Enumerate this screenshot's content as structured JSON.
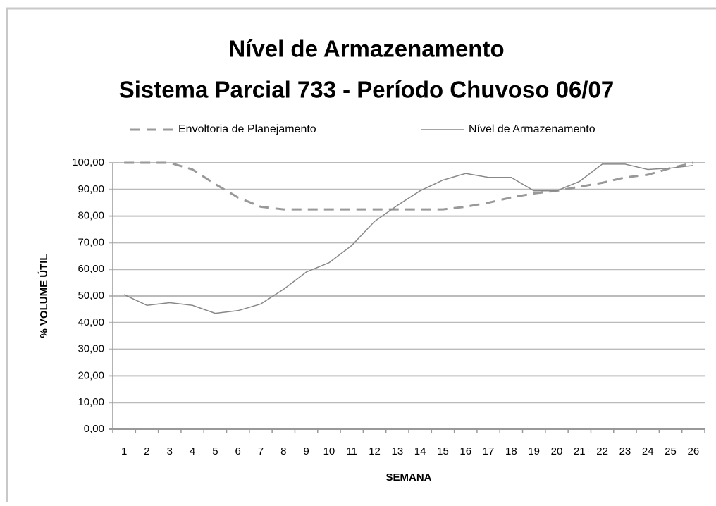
{
  "chart_data": {
    "type": "line",
    "title": "Nível de Armazenamento",
    "subtitle": "Sistema Parcial 733 - Período Chuvoso 06/07",
    "x_label": "SEMANA",
    "y_label": "% VOLUME ÚTIL",
    "categories": [
      "1",
      "2",
      "3",
      "4",
      "5",
      "6",
      "7",
      "8",
      "9",
      "10",
      "11",
      "12",
      "13",
      "14",
      "15",
      "16",
      "17",
      "18",
      "19",
      "20",
      "21",
      "22",
      "23",
      "24",
      "25",
      "26"
    ],
    "series": [
      {
        "name": "Envoltoria de Planejamento",
        "color": "#999999",
        "line_style": "dashed",
        "values": [
          100,
          100,
          100,
          97.5,
          92,
          87,
          83.5,
          82.5,
          82.5,
          82.5,
          82.5,
          82.5,
          82.5,
          82.5,
          82.5,
          83.5,
          85,
          87,
          88.5,
          89.5,
          91,
          92.5,
          94.5,
          95.5,
          98,
          100
        ]
      },
      {
        "name": "Nível de Armazenamento",
        "color": "#888888",
        "line_style": "solid",
        "values": [
          50.5,
          46.5,
          47.5,
          46.5,
          43.5,
          44.5,
          47,
          52.5,
          59,
          62.5,
          69,
          78,
          84,
          89.5,
          93.5,
          96,
          94.5,
          94.5,
          89.5,
          89.5,
          93,
          99.5,
          99.5,
          97.5,
          98,
          99
        ]
      }
    ],
    "ylim": [
      0,
      100
    ],
    "yticks": [
      {
        "value": 0,
        "label": "0,00"
      },
      {
        "value": 10,
        "label": "10,00"
      },
      {
        "value": 20,
        "label": "20,00"
      },
      {
        "value": 30,
        "label": "30,00"
      },
      {
        "value": 40,
        "label": "40,00"
      },
      {
        "value": 50,
        "label": "50,00"
      },
      {
        "value": 60,
        "label": "60,00"
      },
      {
        "value": 70,
        "label": "70,00"
      },
      {
        "value": 80,
        "label": "80,00"
      },
      {
        "value": 90,
        "label": "90,00"
      },
      {
        "value": 100,
        "label": "100,00"
      }
    ],
    "grid": true,
    "legend": "top"
  }
}
